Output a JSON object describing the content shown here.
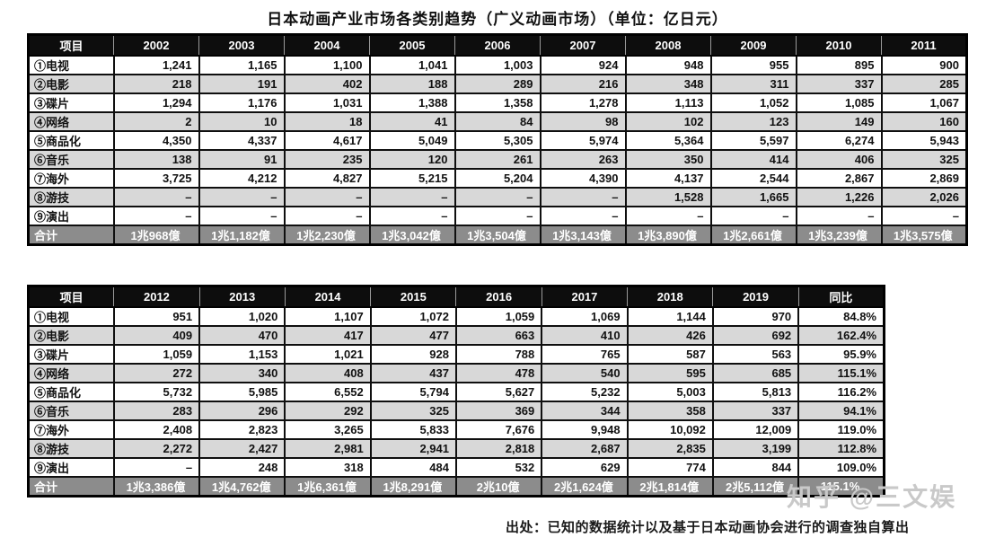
{
  "title": "日本动画产业市场各类别趋势（广义动画市场）（单位：亿日元）",
  "footer_note": "出处：已知的数据统计以及基于日本动画协会进行的调查独自算出",
  "watermark": "知乎 @三文娱",
  "colors": {
    "header_bg": "#0d0d0d",
    "header_text": "#ffffff",
    "row_stripe": "#d8d8d8",
    "total_row_bg": "#8c8c8c",
    "border": "#0f0f0f",
    "watermark": "#c9c9c9"
  },
  "chart_data": [
    {
      "type": "table",
      "title": "日本动画产业市场各类别趋势 2002-2011",
      "columns": [
        "项目",
        "2002",
        "2003",
        "2004",
        "2005",
        "2006",
        "2007",
        "2008",
        "2009",
        "2010",
        "2011"
      ],
      "rows": [
        {
          "label": "①电视",
          "values": [
            "1,241",
            "1,165",
            "1,100",
            "1,041",
            "1,003",
            "924",
            "948",
            "955",
            "895",
            "900"
          ]
        },
        {
          "label": "②电影",
          "values": [
            "218",
            "191",
            "402",
            "188",
            "289",
            "216",
            "348",
            "311",
            "337",
            "285"
          ]
        },
        {
          "label": "③碟片",
          "values": [
            "1,294",
            "1,176",
            "1,031",
            "1,388",
            "1,358",
            "1,278",
            "1,113",
            "1,052",
            "1,085",
            "1,067"
          ]
        },
        {
          "label": "④网络",
          "values": [
            "2",
            "10",
            "18",
            "41",
            "84",
            "98",
            "102",
            "123",
            "149",
            "160"
          ]
        },
        {
          "label": "⑤商品化",
          "values": [
            "4,350",
            "4,337",
            "4,617",
            "5,049",
            "5,305",
            "5,974",
            "5,364",
            "5,597",
            "6,274",
            "5,943"
          ]
        },
        {
          "label": "⑥音乐",
          "values": [
            "138",
            "91",
            "235",
            "120",
            "261",
            "263",
            "350",
            "414",
            "406",
            "325"
          ]
        },
        {
          "label": "⑦海外",
          "values": [
            "3,725",
            "4,212",
            "4,827",
            "5,215",
            "5,204",
            "4,390",
            "4,137",
            "2,544",
            "2,867",
            "2,869"
          ]
        },
        {
          "label": "⑧游技",
          "values": [
            "–",
            "–",
            "–",
            "–",
            "–",
            "–",
            "1,528",
            "1,665",
            "1,226",
            "2,026"
          ]
        },
        {
          "label": "⑨演出",
          "values": [
            "–",
            "–",
            "–",
            "–",
            "–",
            "–",
            "–",
            "–",
            "–",
            "–"
          ]
        }
      ],
      "total_row": {
        "label": "合计",
        "values": [
          "1兆968億",
          "1兆1,182億",
          "1兆2,230億",
          "1兆3,042億",
          "1兆3,504億",
          "1兆3,143億",
          "1兆3,890億",
          "1兆2,661億",
          "1兆3,239億",
          "1兆3,575億"
        ]
      }
    },
    {
      "type": "table",
      "title": "日本动画产业市场各类别趋势 2012-2019",
      "columns": [
        "项目",
        "2012",
        "2013",
        "2014",
        "2015",
        "2016",
        "2017",
        "2018",
        "2019",
        "同比"
      ],
      "rows": [
        {
          "label": "①电视",
          "values": [
            "951",
            "1,020",
            "1,107",
            "1,072",
            "1,059",
            "1,069",
            "1,144",
            "970",
            "84.8%"
          ]
        },
        {
          "label": "②电影",
          "values": [
            "409",
            "470",
            "417",
            "477",
            "663",
            "410",
            "426",
            "692",
            "162.4%"
          ]
        },
        {
          "label": "③碟片",
          "values": [
            "1,059",
            "1,153",
            "1,021",
            "928",
            "788",
            "765",
            "587",
            "563",
            "95.9%"
          ]
        },
        {
          "label": "④网络",
          "values": [
            "272",
            "340",
            "408",
            "437",
            "478",
            "540",
            "595",
            "685",
            "115.1%"
          ]
        },
        {
          "label": "⑤商品化",
          "values": [
            "5,732",
            "5,985",
            "6,552",
            "5,794",
            "5,627",
            "5,232",
            "5,003",
            "5,813",
            "116.2%"
          ]
        },
        {
          "label": "⑥音乐",
          "values": [
            "283",
            "296",
            "292",
            "325",
            "369",
            "344",
            "358",
            "337",
            "94.1%"
          ]
        },
        {
          "label": "⑦海外",
          "values": [
            "2,408",
            "2,823",
            "3,265",
            "5,833",
            "7,676",
            "9,948",
            "10,092",
            "12,009",
            "119.0%"
          ]
        },
        {
          "label": "⑧游技",
          "values": [
            "2,272",
            "2,427",
            "2,981",
            "2,941",
            "2,818",
            "2,687",
            "2,835",
            "3,199",
            "112.8%"
          ]
        },
        {
          "label": "⑨演出",
          "values": [
            "–",
            "248",
            "318",
            "484",
            "532",
            "629",
            "774",
            "844",
            "109.0%"
          ]
        }
      ],
      "total_row": {
        "label": "合计",
        "values": [
          "1兆3,386億",
          "1兆4,762億",
          "1兆6,361億",
          "1兆8,291億",
          "2兆10億",
          "2兆1,624億",
          "2兆1,814億",
          "2兆5,112億",
          "115.1%"
        ]
      }
    }
  ]
}
